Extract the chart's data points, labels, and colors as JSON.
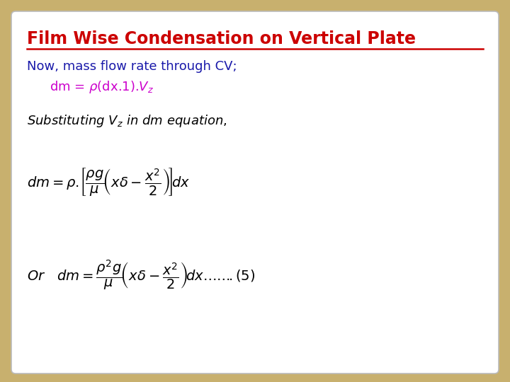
{
  "bg_color": "#c8b06e",
  "panel_color": "#ffffff",
  "title": "Film Wise Condensation on Vertical Plate",
  "title_color": "#cc0000",
  "line1_color": "#1a1aaa",
  "line2_color": "#cc00cc",
  "eq_color": "#000000"
}
